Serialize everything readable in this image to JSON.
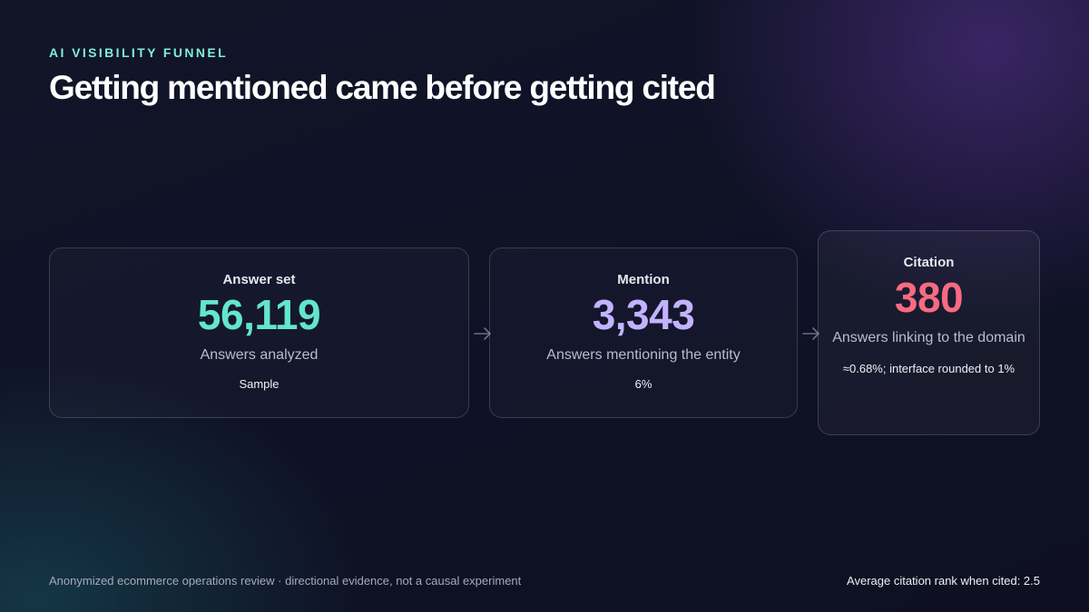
{
  "header": {
    "eyebrow": "AI VISIBILITY FUNNEL",
    "title": "Getting mentioned came before getting cited"
  },
  "stages": [
    {
      "label": "Answer set",
      "value": "56,119",
      "description": "Answers analyzed",
      "note": "Sample",
      "color": "#63e6cc"
    },
    {
      "label": "Mention",
      "value": "3,343",
      "description": "Answers mentioning the entity",
      "note": "6%",
      "color": "#c3b3ff"
    },
    {
      "label": "Citation",
      "value": "380",
      "description": "Answers linking to the domain",
      "note": "≈0.68%; interface rounded to 1%",
      "color": "#f76b82"
    }
  ],
  "icons": {
    "stage_connector": "arrow-right-icon"
  },
  "footer": {
    "left": "Anonymized ecommerce operations review · directional evidence, not a causal experiment",
    "right": "Average citation rank when cited: 2.5"
  }
}
